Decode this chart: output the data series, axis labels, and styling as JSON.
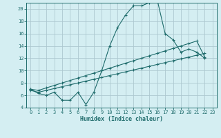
{
  "xlabel": "Humidex (Indice chaleur)",
  "bg_color": "#d4eef2",
  "grid_color": "#adc8d0",
  "line_color": "#1e6b6b",
  "xlim": [
    -0.5,
    23.5
  ],
  "ylim": [
    4,
    21
  ],
  "yticks": [
    4,
    6,
    8,
    10,
    12,
    14,
    16,
    18,
    20
  ],
  "xticks": [
    0,
    1,
    2,
    3,
    4,
    5,
    6,
    7,
    8,
    9,
    10,
    11,
    12,
    13,
    14,
    15,
    16,
    17,
    18,
    19,
    20,
    21,
    22,
    23
  ],
  "line1_x": [
    0,
    1,
    2,
    3,
    4,
    5,
    6,
    7,
    8,
    9,
    10,
    11,
    12,
    13,
    14,
    15,
    16,
    17,
    18,
    19,
    20,
    21,
    22
  ],
  "line1_y": [
    7.0,
    6.3,
    6.0,
    6.5,
    5.2,
    5.2,
    6.5,
    4.5,
    6.5,
    10.0,
    14.0,
    17.0,
    19.0,
    20.5,
    20.5,
    21.0,
    21.5,
    16.0,
    15.0,
    13.0,
    13.5,
    13.0,
    12.0
  ],
  "line2_x": [
    0,
    1,
    2,
    3,
    4,
    5,
    6,
    7,
    8,
    9,
    10,
    11,
    12,
    13,
    14,
    15,
    16,
    17,
    18,
    19,
    20,
    21,
    22,
    23
  ],
  "line2_y": [
    7.0,
    6.8,
    7.2,
    7.6,
    8.0,
    8.4,
    8.8,
    9.2,
    9.6,
    10.0,
    10.4,
    10.8,
    11.2,
    11.6,
    12.0,
    12.4,
    12.8,
    13.2,
    13.6,
    14.0,
    14.4,
    14.8,
    12.2,
    null
  ],
  "line3_x": [
    0,
    1,
    2,
    3,
    4,
    5,
    6,
    7,
    8,
    9,
    10,
    11,
    12,
    13,
    14,
    15,
    16,
    17,
    18,
    19,
    20,
    21,
    22,
    23
  ],
  "line3_y": [
    6.8,
    6.5,
    6.8,
    7.1,
    7.4,
    7.7,
    8.0,
    8.3,
    8.6,
    8.9,
    9.2,
    9.5,
    9.8,
    10.1,
    10.4,
    10.7,
    11.0,
    11.3,
    11.6,
    11.9,
    12.2,
    12.5,
    12.8,
    null
  ]
}
